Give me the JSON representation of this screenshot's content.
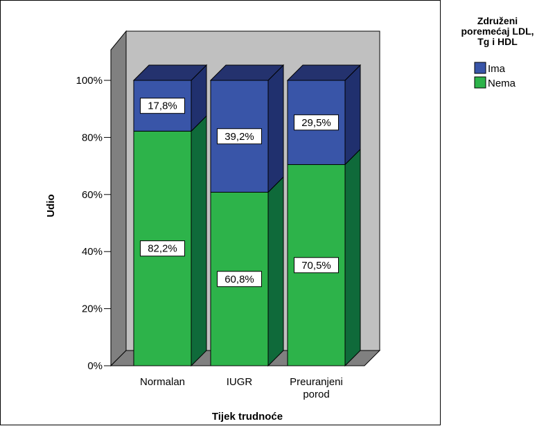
{
  "chart_data": {
    "type": "bar",
    "stacked": true,
    "three_d": true,
    "categories": [
      "Normalan",
      "IUGR",
      "Preuranjeni porod"
    ],
    "category_label_lines": [
      [
        "Normalan"
      ],
      [
        "IUGR"
      ],
      [
        "Preuranjeni",
        "porod"
      ]
    ],
    "series": [
      {
        "name": "Nema",
        "values": [
          82.2,
          60.8,
          70.5
        ],
        "labels": [
          "82,2%",
          "60,8%",
          "70,5%"
        ],
        "color": "#2db34a",
        "side_color": "#0f6a3a",
        "top_color": "#22a848"
      },
      {
        "name": "Ima",
        "values": [
          17.8,
          39.2,
          29.5
        ],
        "labels": [
          "17,8%",
          "39,2%",
          "29,5%"
        ],
        "color": "#3955a8",
        "side_color": "#20306e",
        "top_color": "#24326e"
      }
    ],
    "xlabel": "Tijek trudnoće",
    "ylabel": "Udio",
    "ylim": [
      0,
      100
    ],
    "yticks": [
      0,
      20,
      40,
      60,
      80,
      100
    ],
    "ytick_labels": [
      "0%",
      "20%",
      "40%",
      "60%",
      "80%",
      "100%"
    ],
    "legend": {
      "title_lines": [
        "Združeni",
        "poremećaj LDL,",
        "Tg i HDL"
      ],
      "items": [
        {
          "label": "Ima",
          "color": "#3955a8"
        },
        {
          "label": "Nema",
          "color": "#2db34a"
        }
      ],
      "position": "top-right"
    },
    "wall_color": "#c0c0c0",
    "floor_color": "#808080",
    "grid": false
  }
}
